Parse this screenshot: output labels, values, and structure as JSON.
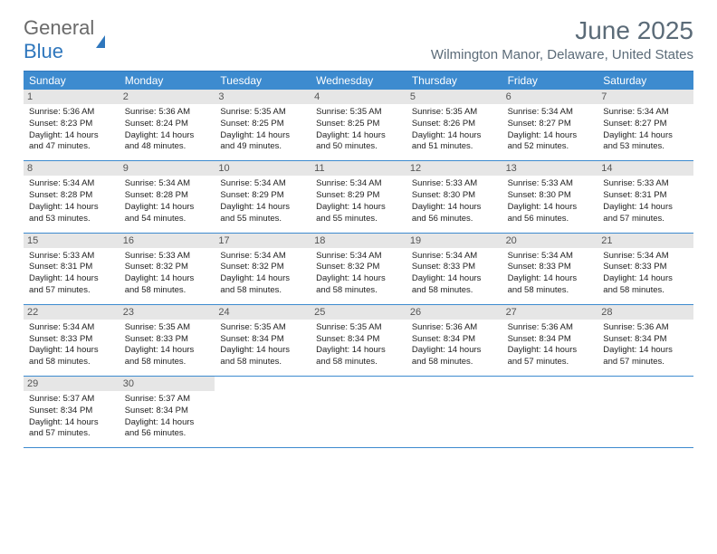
{
  "logo": {
    "text1": "General",
    "text2": "Blue"
  },
  "title": {
    "month": "June 2025",
    "location": "Wilmington Manor, Delaware, United States"
  },
  "colors": {
    "header_bar": "#3d8bcf",
    "header_border": "#2f77bd",
    "daynum_bg": "#e6e6e6",
    "text_muted": "#5b6b78"
  },
  "weekdays": [
    "Sunday",
    "Monday",
    "Tuesday",
    "Wednesday",
    "Thursday",
    "Friday",
    "Saturday"
  ],
  "weeks": [
    [
      {
        "n": "1",
        "sr": "5:36 AM",
        "ss": "8:23 PM",
        "dl": "14 hours and 47 minutes."
      },
      {
        "n": "2",
        "sr": "5:36 AM",
        "ss": "8:24 PM",
        "dl": "14 hours and 48 minutes."
      },
      {
        "n": "3",
        "sr": "5:35 AM",
        "ss": "8:25 PM",
        "dl": "14 hours and 49 minutes."
      },
      {
        "n": "4",
        "sr": "5:35 AM",
        "ss": "8:25 PM",
        "dl": "14 hours and 50 minutes."
      },
      {
        "n": "5",
        "sr": "5:35 AM",
        "ss": "8:26 PM",
        "dl": "14 hours and 51 minutes."
      },
      {
        "n": "6",
        "sr": "5:34 AM",
        "ss": "8:27 PM",
        "dl": "14 hours and 52 minutes."
      },
      {
        "n": "7",
        "sr": "5:34 AM",
        "ss": "8:27 PM",
        "dl": "14 hours and 53 minutes."
      }
    ],
    [
      {
        "n": "8",
        "sr": "5:34 AM",
        "ss": "8:28 PM",
        "dl": "14 hours and 53 minutes."
      },
      {
        "n": "9",
        "sr": "5:34 AM",
        "ss": "8:28 PM",
        "dl": "14 hours and 54 minutes."
      },
      {
        "n": "10",
        "sr": "5:34 AM",
        "ss": "8:29 PM",
        "dl": "14 hours and 55 minutes."
      },
      {
        "n": "11",
        "sr": "5:34 AM",
        "ss": "8:29 PM",
        "dl": "14 hours and 55 minutes."
      },
      {
        "n": "12",
        "sr": "5:33 AM",
        "ss": "8:30 PM",
        "dl": "14 hours and 56 minutes."
      },
      {
        "n": "13",
        "sr": "5:33 AM",
        "ss": "8:30 PM",
        "dl": "14 hours and 56 minutes."
      },
      {
        "n": "14",
        "sr": "5:33 AM",
        "ss": "8:31 PM",
        "dl": "14 hours and 57 minutes."
      }
    ],
    [
      {
        "n": "15",
        "sr": "5:33 AM",
        "ss": "8:31 PM",
        "dl": "14 hours and 57 minutes."
      },
      {
        "n": "16",
        "sr": "5:33 AM",
        "ss": "8:32 PM",
        "dl": "14 hours and 58 minutes."
      },
      {
        "n": "17",
        "sr": "5:34 AM",
        "ss": "8:32 PM",
        "dl": "14 hours and 58 minutes."
      },
      {
        "n": "18",
        "sr": "5:34 AM",
        "ss": "8:32 PM",
        "dl": "14 hours and 58 minutes."
      },
      {
        "n": "19",
        "sr": "5:34 AM",
        "ss": "8:33 PM",
        "dl": "14 hours and 58 minutes."
      },
      {
        "n": "20",
        "sr": "5:34 AM",
        "ss": "8:33 PM",
        "dl": "14 hours and 58 minutes."
      },
      {
        "n": "21",
        "sr": "5:34 AM",
        "ss": "8:33 PM",
        "dl": "14 hours and 58 minutes."
      }
    ],
    [
      {
        "n": "22",
        "sr": "5:34 AM",
        "ss": "8:33 PM",
        "dl": "14 hours and 58 minutes."
      },
      {
        "n": "23",
        "sr": "5:35 AM",
        "ss": "8:33 PM",
        "dl": "14 hours and 58 minutes."
      },
      {
        "n": "24",
        "sr": "5:35 AM",
        "ss": "8:34 PM",
        "dl": "14 hours and 58 minutes."
      },
      {
        "n": "25",
        "sr": "5:35 AM",
        "ss": "8:34 PM",
        "dl": "14 hours and 58 minutes."
      },
      {
        "n": "26",
        "sr": "5:36 AM",
        "ss": "8:34 PM",
        "dl": "14 hours and 58 minutes."
      },
      {
        "n": "27",
        "sr": "5:36 AM",
        "ss": "8:34 PM",
        "dl": "14 hours and 57 minutes."
      },
      {
        "n": "28",
        "sr": "5:36 AM",
        "ss": "8:34 PM",
        "dl": "14 hours and 57 minutes."
      }
    ],
    [
      {
        "n": "29",
        "sr": "5:37 AM",
        "ss": "8:34 PM",
        "dl": "14 hours and 57 minutes."
      },
      {
        "n": "30",
        "sr": "5:37 AM",
        "ss": "8:34 PM",
        "dl": "14 hours and 56 minutes."
      },
      null,
      null,
      null,
      null,
      null
    ]
  ],
  "labels": {
    "sunrise": "Sunrise: ",
    "sunset": "Sunset: ",
    "daylight": "Daylight: "
  }
}
